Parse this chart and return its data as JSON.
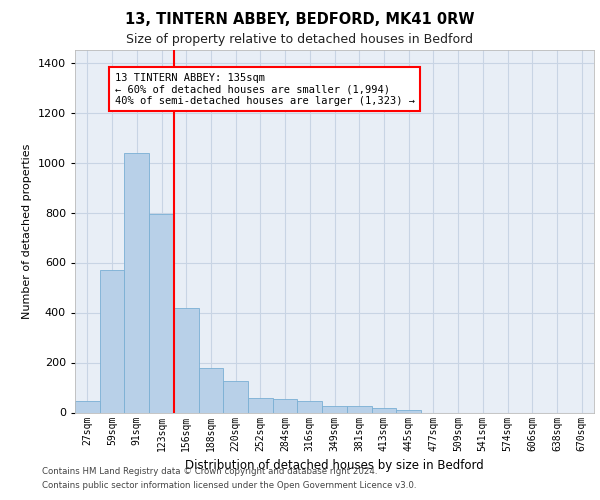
{
  "title_line1": "13, TINTERN ABBEY, BEDFORD, MK41 0RW",
  "title_line2": "Size of property relative to detached houses in Bedford",
  "xlabel": "Distribution of detached houses by size in Bedford",
  "ylabel": "Number of detached properties",
  "categories": [
    "27sqm",
    "59sqm",
    "91sqm",
    "123sqm",
    "156sqm",
    "188sqm",
    "220sqm",
    "252sqm",
    "284sqm",
    "316sqm",
    "349sqm",
    "381sqm",
    "413sqm",
    "445sqm",
    "477sqm",
    "509sqm",
    "541sqm",
    "574sqm",
    "606sqm",
    "638sqm",
    "670sqm"
  ],
  "values": [
    45,
    572,
    1040,
    795,
    420,
    178,
    128,
    60,
    55,
    45,
    28,
    28,
    18,
    12,
    0,
    0,
    0,
    0,
    0,
    0,
    0
  ],
  "bar_color": "#b8d0e8",
  "bar_edge_color": "#7aafd4",
  "grid_color": "#c8d4e4",
  "background_color": "#e8eef6",
  "vline_color": "red",
  "annotation_text": "13 TINTERN ABBEY: 135sqm\n← 60% of detached houses are smaller (1,994)\n40% of semi-detached houses are larger (1,323) →",
  "annotation_box_facecolor": "white",
  "annotation_box_edgecolor": "red",
  "ylim": [
    0,
    1450
  ],
  "yticks": [
    0,
    200,
    400,
    600,
    800,
    1000,
    1200,
    1400
  ],
  "footer_line1": "Contains HM Land Registry data © Crown copyright and database right 2024.",
  "footer_line2": "Contains public sector information licensed under the Open Government Licence v3.0."
}
